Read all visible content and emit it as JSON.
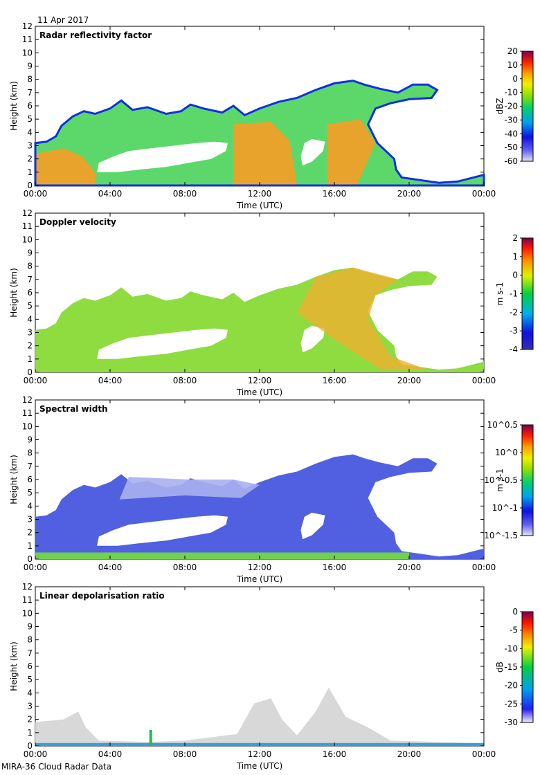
{
  "date": "11 Apr 2017",
  "footer": "MIRA-36 Cloud Radar Data",
  "chart_data": [
    {
      "type": "heatmap",
      "title": "Radar reflectivity factor",
      "xlabel": "Time (UTC)",
      "ylabel": "Height (km)",
      "x_ticks": [
        "00:00",
        "04:00",
        "08:00",
        "12:00",
        "16:00",
        "20:00",
        "00:00"
      ],
      "xlim_hours": [
        0,
        24
      ],
      "ylim_km": [
        0,
        12
      ],
      "y_ticks": [
        0,
        1,
        2,
        3,
        4,
        5,
        6,
        7,
        8,
        9,
        10,
        11,
        12
      ],
      "colorbar": {
        "unit": "dBZ",
        "min": -60,
        "max": 20,
        "ticks": [
          "20",
          "10",
          "0",
          "-10",
          "-20",
          "-30",
          "-40",
          "-50",
          "-60"
        ]
      }
    },
    {
      "type": "heatmap",
      "title": "Doppler velocity",
      "xlabel": "Time (UTC)",
      "ylabel": "Height (km)",
      "x_ticks": [
        "00:00",
        "04:00",
        "08:00",
        "12:00",
        "16:00",
        "20:00",
        "00:00"
      ],
      "xlim_hours": [
        0,
        24
      ],
      "ylim_km": [
        0,
        12
      ],
      "y_ticks": [
        0,
        1,
        2,
        3,
        4,
        5,
        6,
        7,
        8,
        9,
        10,
        11,
        12
      ],
      "colorbar": {
        "unit": "m s-1",
        "min": -4,
        "max": 2,
        "ticks": [
          "2",
          "1",
          "0",
          "-1",
          "-2",
          "-3",
          "-4"
        ]
      }
    },
    {
      "type": "heatmap",
      "title": "Spectral width",
      "xlabel": "Time (UTC)",
      "ylabel": "Height (km)",
      "x_ticks": [
        "00:00",
        "04:00",
        "08:00",
        "12:00",
        "16:00",
        "20:00",
        "00:00"
      ],
      "xlim_hours": [
        0,
        24
      ],
      "ylim_km": [
        0,
        12
      ],
      "y_ticks": [
        0,
        1,
        2,
        3,
        4,
        5,
        6,
        7,
        8,
        9,
        10,
        11,
        12
      ],
      "colorbar": {
        "unit": "m s-1",
        "scale": "log",
        "min": -1.5,
        "max": 0.5,
        "ticks": [
          "10^0.5",
          "10^0",
          "10^-0.5",
          "10^-1",
          "10^-1.5"
        ]
      }
    },
    {
      "type": "heatmap",
      "title": "Linear depolarisation ratio",
      "xlabel": "Time (UTC)",
      "ylabel": "Height (km)",
      "x_ticks": [
        "00:00",
        "04:00",
        "08:00",
        "12:00",
        "16:00",
        "20:00",
        "00:00"
      ],
      "xlim_hours": [
        0,
        24
      ],
      "ylim_km": [
        0,
        12
      ],
      "y_ticks": [
        0,
        1,
        2,
        3,
        4,
        5,
        6,
        7,
        8,
        9,
        10,
        11,
        12
      ],
      "colorbar": {
        "unit": "dB",
        "min": -30,
        "max": 0,
        "ticks": [
          "0",
          "-5",
          "-10",
          "-15",
          "-20",
          "-25",
          "-30"
        ]
      }
    }
  ]
}
